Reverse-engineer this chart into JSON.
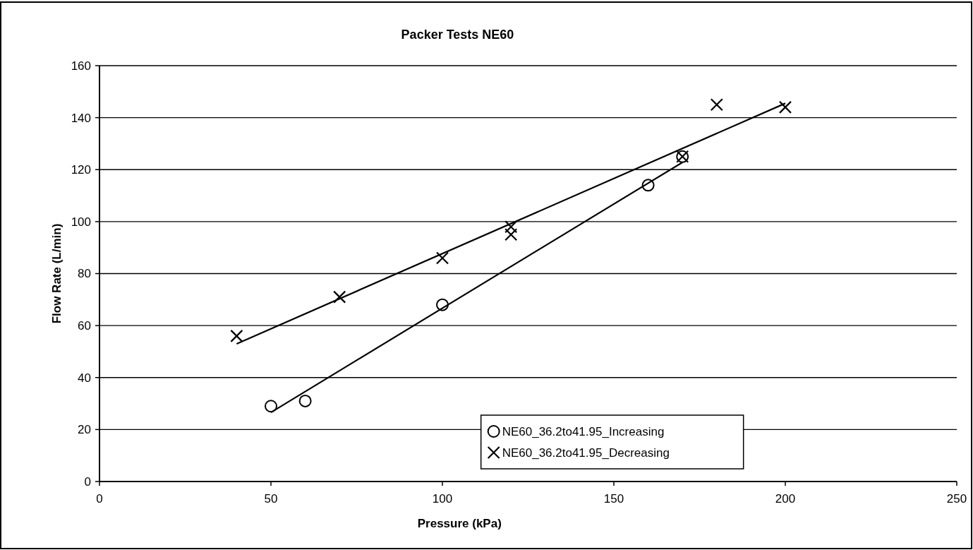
{
  "chart_data": {
    "type": "scatter",
    "title": "Packer Tests NE60",
    "xlabel": "Pressure (kPa)",
    "ylabel": "Flow Rate (L/min)",
    "xlim": [
      0,
      250
    ],
    "xticks": [
      0,
      50,
      100,
      150,
      200,
      250
    ],
    "ylim": [
      0,
      160
    ],
    "yticks": [
      0,
      20,
      40,
      60,
      80,
      100,
      120,
      140,
      160
    ],
    "grid": "y",
    "legend": "bottom",
    "series": [
      {
        "name": "NE60_36.2to41.95_Increasing",
        "marker": "circle",
        "color": "#000000",
        "x": [
          50,
          60,
          100,
          160,
          170
        ],
        "values": [
          29,
          31,
          68,
          114,
          125
        ]
      },
      {
        "name": "NE60_36.2to41.95_Decreasing",
        "marker": "cross",
        "color": "#000000",
        "x": [
          40,
          70,
          100,
          120,
          120,
          170,
          180,
          200
        ],
        "values": [
          56,
          71,
          86,
          98,
          95,
          125,
          145,
          144
        ]
      },
      {
        "type": "line",
        "marker": "none",
        "color": "#000000",
        "x": [
          50,
          170
        ],
        "values": [
          26.6,
          122.8
        ]
      },
      {
        "type": "line",
        "marker": "none",
        "color": "#000000",
        "x": [
          40,
          200
        ],
        "values": [
          53,
          145.5
        ]
      }
    ]
  }
}
